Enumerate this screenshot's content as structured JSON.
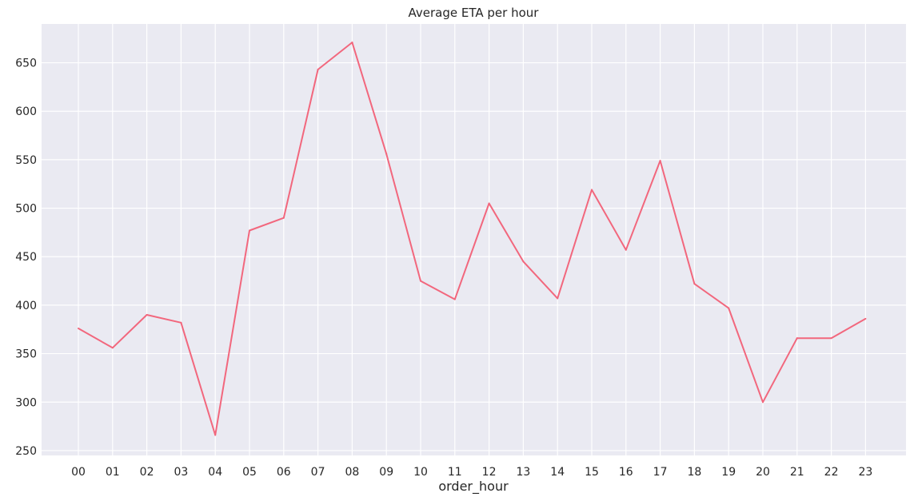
{
  "chart_data": {
    "type": "line",
    "title": "Average ETA per hour",
    "xlabel": "order_hour",
    "ylabel": "",
    "categories": [
      "00",
      "01",
      "02",
      "03",
      "04",
      "05",
      "06",
      "07",
      "08",
      "09",
      "10",
      "11",
      "12",
      "13",
      "14",
      "15",
      "16",
      "17",
      "18",
      "19",
      "20",
      "21",
      "22",
      "23"
    ],
    "series": [
      {
        "values": [
          376,
          356,
          390,
          382,
          266,
          477,
          490,
          643,
          671,
          556,
          425,
          406,
          505,
          445,
          407,
          519,
          457,
          549,
          422,
          397,
          300,
          366,
          366,
          386
        ]
      }
    ],
    "ylim": [
      245,
      690
    ],
    "yticks": [
      250,
      300,
      350,
      400,
      450,
      500,
      550,
      600,
      650
    ],
    "grid": true,
    "legend": "none",
    "colors": {
      "line": "#f2677d",
      "plot_background": "#eaeaf2",
      "grid": "#ffffff"
    }
  }
}
